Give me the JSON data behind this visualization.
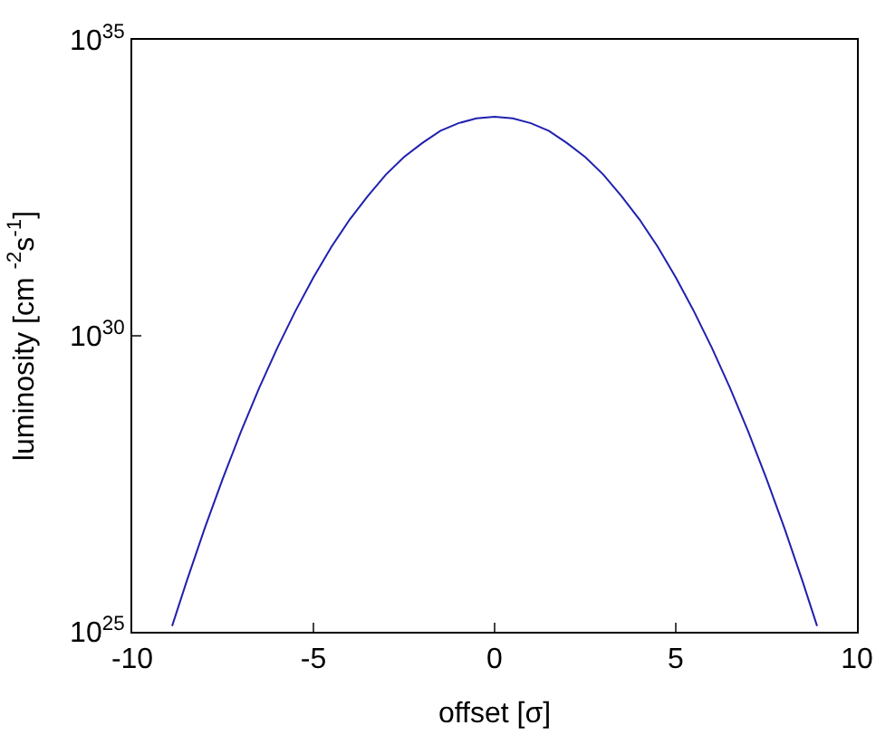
{
  "chart_data": {
    "type": "line",
    "xlabel": "offset [σ]",
    "ylabel": "luminosity [cm $^{-2}$s$^{-1}$]",
    "x": [
      -8.9,
      -8.5,
      -8,
      -7.5,
      -7,
      -6.5,
      -6,
      -5.5,
      -5,
      -4.5,
      -4,
      -3.5,
      -3,
      -2.5,
      -2,
      -1.5,
      -1,
      -0.5,
      0,
      0.5,
      1,
      1.5,
      2,
      2.5,
      3,
      3.5,
      4,
      4.5,
      5,
      5.5,
      6,
      6.5,
      7,
      7.5,
      8,
      8.5,
      8.9
    ],
    "series": [
      {
        "color": "#2020b0",
        "values": [
          1.25e+25,
          7.1e+25,
          5.6e+26,
          3.9e+27,
          2.4e+28,
          1.3e+29,
          6.2e+29,
          2.6e+30,
          9.7e+30,
          3.2e+31,
          9.2e+31,
          2.3e+32,
          5.3e+32,
          1.05e+33,
          1.8e+33,
          2.9e+33,
          3.9e+33,
          4.7e+33,
          5e+33,
          4.7e+33,
          3.9e+33,
          2.9e+33,
          1.8e+33,
          1.05e+33,
          5.3e+32,
          2.3e+32,
          9.2e+31,
          3.2e+31,
          9.7e+30,
          2.6e+30,
          6.2e+29,
          1.3e+29,
          2.4e+28,
          3.9e+27,
          5.6e+26,
          7.1e+25,
          1.25e+25
        ]
      }
    ],
    "xlim": [
      -10,
      10
    ],
    "xticks": [
      -10,
      -5,
      0,
      5,
      10
    ],
    "ylim": [
      1e+25,
      1e+35
    ],
    "yticks": [
      {
        "value": 1e+25,
        "label": "10$^{25}$"
      },
      {
        "value": 1e+30,
        "label": "10$^{30}$"
      },
      {
        "value": 1e+35,
        "label": "10$^{35}$"
      }
    ],
    "log": "y",
    "legend": false,
    "marker": "none",
    "line_style": "solid"
  }
}
